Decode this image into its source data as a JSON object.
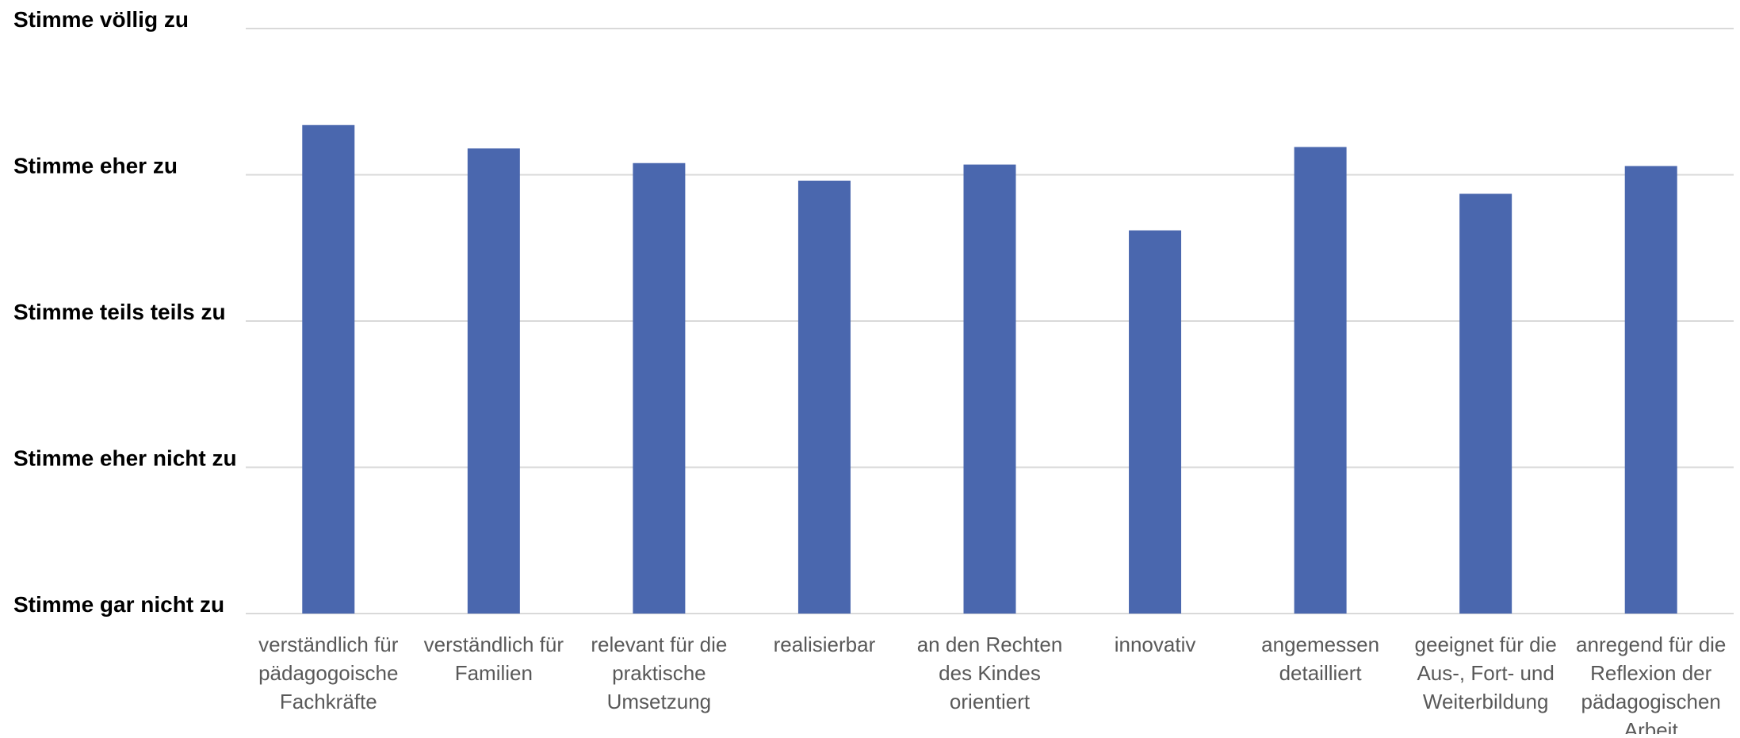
{
  "chart_data": {
    "type": "bar",
    "title": "",
    "xlabel": "",
    "ylabel": "",
    "y_tick_labels": [
      "Stimme gar nicht zu",
      "Stimme eher nicht zu",
      "Stimme teils teils zu",
      "Stimme eher zu",
      "Stimme völlig zu"
    ],
    "ylim": [
      1,
      5
    ],
    "grid": true,
    "legend": "none",
    "categories": [
      [
        "verständlich für",
        "pädagogoische",
        "Fachkräfte"
      ],
      [
        "verständlich für",
        "Familien"
      ],
      [
        "relevant für die",
        "praktische",
        "Umsetzung"
      ],
      [
        "realisierbar"
      ],
      [
        "an den Rechten",
        "des Kindes",
        "orientiert"
      ],
      [
        "innovativ"
      ],
      [
        "angemessen",
        "detailliert"
      ],
      [
        "geeignet für die",
        "Aus-, Fort- und",
        "Weiterbildung"
      ],
      [
        "anregend für die",
        "Reflexion der",
        "pädagogischen",
        "Arbeit"
      ]
    ],
    "values": [
      4.34,
      4.18,
      4.08,
      3.96,
      4.07,
      3.62,
      4.19,
      3.87,
      4.06
    ],
    "colors": {
      "bar": "#4A67AE",
      "grid": "#D9D9D9",
      "ytick": "#000000",
      "xtick": "#595959"
    }
  }
}
